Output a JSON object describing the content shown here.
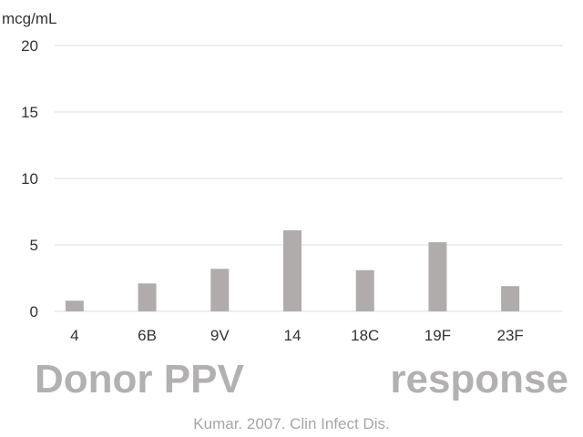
{
  "chart_data": {
    "type": "bar",
    "categories": [
      "4",
      "6B",
      "9V",
      "14",
      "18C",
      "19F",
      "23F"
    ],
    "values": [
      0.8,
      2.1,
      3.2,
      6.1,
      3.1,
      5.2,
      1.9
    ],
    "ylabel": "mcg/mL",
    "ylim": [
      0,
      20
    ],
    "yticks": [
      0,
      5,
      10,
      15,
      20
    ],
    "grid": true,
    "bar_color": "#b0acac",
    "grid_color": "#dcdcdc"
  },
  "headline": {
    "left": "Donor PPV",
    "right": "response"
  },
  "citation": "Kumar. 2007. Clin Infect Dis."
}
